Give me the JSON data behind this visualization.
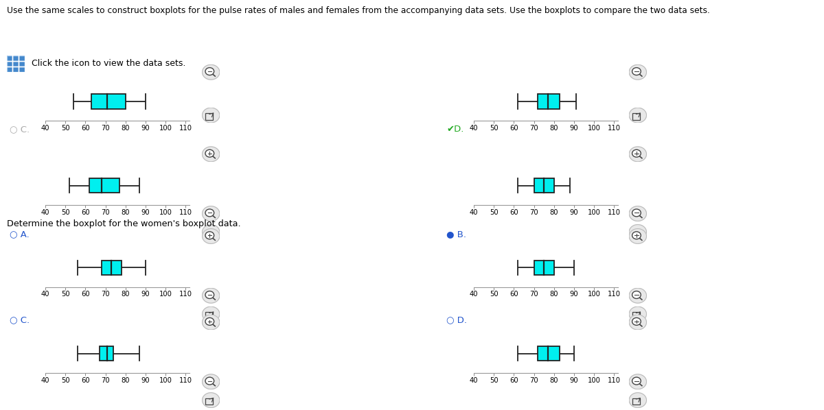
{
  "title_text": "Use the same scales to construct boxplots for the pulse rates of males and females from the accompanying data sets. Use the boxplots to compare the two data sets.",
  "subtitle_text": "Click the icon to view the data sets.",
  "section2_text": "Determine the boxplot for the women's boxplot data.",
  "xmin": 40,
  "xmax": 110,
  "xticks": [
    40,
    50,
    60,
    70,
    80,
    90,
    100,
    110
  ],
  "box_color": "#00EFEF",
  "box_edge_color": "#222222",
  "whisker_color": "#222222",
  "bg_color": "#ffffff",
  "label_color": "#000000",
  "blue_color": "#2255cc",
  "gray_color": "#aaaaaa",
  "green_color": "#22aa22",
  "boxplots": {
    "top_L1": {
      "min": 54,
      "q1": 63,
      "median": 71,
      "q3": 80,
      "max": 90
    },
    "top_R1": {
      "min": 62,
      "q1": 72,
      "median": 77,
      "q3": 83,
      "max": 91
    },
    "top_L2": {
      "min": 52,
      "q1": 62,
      "median": 68,
      "q3": 77,
      "max": 87
    },
    "top_R2": {
      "min": 62,
      "q1": 70,
      "median": 75,
      "q3": 80,
      "max": 88
    },
    "bot_A": {
      "min": 56,
      "q1": 68,
      "median": 73,
      "q3": 78,
      "max": 90
    },
    "bot_B": {
      "min": 62,
      "q1": 70,
      "median": 75,
      "q3": 80,
      "max": 90
    },
    "bot_C": {
      "min": 56,
      "q1": 67,
      "median": 71,
      "q3": 74,
      "max": 87
    },
    "bot_D": {
      "min": 62,
      "q1": 72,
      "median": 77,
      "q3": 83,
      "max": 90
    }
  },
  "icon_zoom_color": "#dddddd",
  "icon_ext_color": "#dddddd"
}
